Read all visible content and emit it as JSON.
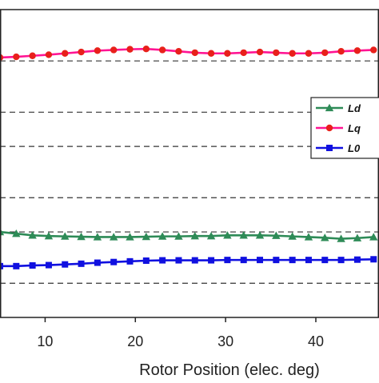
{
  "chart_data": {
    "type": "line",
    "xlabel": "Rotor Position (elec. deg)",
    "x_ticks": [
      "10",
      "20",
      "30",
      "40"
    ],
    "xlim": [
      5,
      47
    ],
    "ylim": [
      0,
      9
    ],
    "grid": "horizontal dashed lines",
    "legend_position": "right",
    "x": [
      5.0,
      6.8,
      8.6,
      10.4,
      12.2,
      14.0,
      15.8,
      17.6,
      19.4,
      21.2,
      23.0,
      24.8,
      26.6,
      28.4,
      30.2,
      32.0,
      33.8,
      35.6,
      37.4,
      39.2,
      41.0,
      42.8,
      44.6,
      46.4
    ],
    "series": [
      {
        "name": "Ld",
        "color": "#2e8b57",
        "marker": "triangle",
        "values": [
          2.5,
          2.45,
          2.4,
          2.38,
          2.37,
          2.36,
          2.35,
          2.35,
          2.35,
          2.36,
          2.37,
          2.37,
          2.38,
          2.38,
          2.4,
          2.4,
          2.4,
          2.39,
          2.37,
          2.35,
          2.33,
          2.3,
          2.32,
          2.35
        ]
      },
      {
        "name": "Lq",
        "color": "#ff1493",
        "marker": "circle",
        "markerColor": "#e8201b",
        "values": [
          7.6,
          7.62,
          7.65,
          7.68,
          7.72,
          7.76,
          7.8,
          7.82,
          7.84,
          7.85,
          7.82,
          7.78,
          7.74,
          7.72,
          7.72,
          7.74,
          7.76,
          7.74,
          7.72,
          7.72,
          7.74,
          7.78,
          7.8,
          7.82
        ]
      },
      {
        "name": "L0",
        "color": "#1010e0",
        "marker": "square",
        "values": [
          1.5,
          1.5,
          1.52,
          1.53,
          1.55,
          1.57,
          1.6,
          1.62,
          1.64,
          1.66,
          1.67,
          1.67,
          1.67,
          1.67,
          1.68,
          1.68,
          1.68,
          1.68,
          1.68,
          1.68,
          1.68,
          1.68,
          1.69,
          1.7
        ]
      }
    ],
    "gridlines_y": [
      1.0,
      2.5,
      3.5,
      5.0,
      6.0,
      7.5
    ]
  }
}
